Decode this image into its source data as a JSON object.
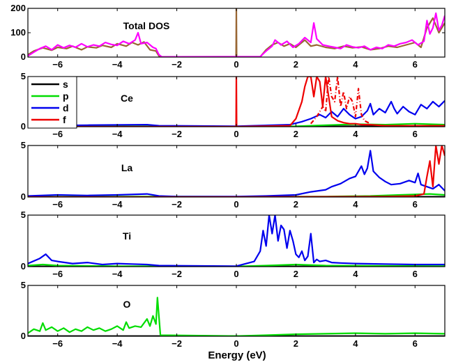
{
  "chart_data": {
    "type": "line",
    "xlabel": "Energy (eV)",
    "xlim": [
      -7,
      7
    ],
    "xticks": [
      -6,
      -4,
      -2,
      0,
      2,
      4,
      6
    ],
    "xtick_labels": [
      "−6",
      "−4",
      "−2",
      "0",
      "2",
      "4",
      "6"
    ],
    "legend": {
      "placement": "top-left of Ce panel",
      "entries": [
        {
          "label": "s",
          "color": "#000000"
        },
        {
          "label": "p",
          "color": "#00dd00"
        },
        {
          "label": "d",
          "color": "#0000ee"
        },
        {
          "label": "f",
          "color": "#ee0000"
        }
      ]
    },
    "fermi_level": 0,
    "panels": [
      {
        "label": "Total DOS",
        "ylim": [
          0,
          200
        ],
        "yticks": [
          0,
          100,
          200
        ],
        "series": [
          {
            "color": "#996633",
            "x": [
              -7.0,
              -6.8,
              -6.5,
              -6.2,
              -6.0,
              -5.7,
              -5.5,
              -5.2,
              -5.0,
              -4.7,
              -4.5,
              -4.2,
              -4.0,
              -3.7,
              -3.5,
              -3.3,
              -3.1,
              -2.9,
              -2.7,
              -2.6,
              -2.5,
              -0.02,
              -0.01,
              0.0,
              0.01,
              0.02,
              0.8,
              1.0,
              1.2,
              1.4,
              1.6,
              1.8,
              2.0,
              2.3,
              2.5,
              2.7,
              3.0,
              3.3,
              3.6,
              3.9,
              4.2,
              4.5,
              4.8,
              5.1,
              5.4,
              5.7,
              6.0,
              6.2,
              6.4,
              6.6,
              6.8,
              7.0
            ],
            "y": [
              10,
              25,
              38,
              28,
              40,
              35,
              45,
              30,
              42,
              38,
              48,
              40,
              55,
              45,
              60,
              50,
              62,
              30,
              25,
              5,
              1,
              1,
              1,
              200,
              1,
              1,
              1,
              30,
              50,
              60,
              45,
              55,
              40,
              70,
              45,
              50,
              40,
              35,
              45,
              38,
              42,
              30,
              35,
              45,
              40,
              50,
              60,
              40,
              120,
              160,
              100,
              140
            ]
          },
          {
            "color": "#ff00ff",
            "x": [
              -7.0,
              -6.8,
              -6.6,
              -6.4,
              -6.2,
              -6.0,
              -5.8,
              -5.6,
              -5.4,
              -5.2,
              -5.0,
              -4.8,
              -4.6,
              -4.4,
              -4.2,
              -4.0,
              -3.8,
              -3.6,
              -3.4,
              -3.3,
              -3.2,
              -3.0,
              -2.8,
              -2.7,
              -2.6,
              -2.5,
              0.8,
              1.0,
              1.2,
              1.3,
              1.5,
              1.7,
              1.9,
              2.1,
              2.3,
              2.5,
              2.6,
              2.7,
              2.9,
              3.1,
              3.3,
              3.5,
              3.7,
              3.9,
              4.1,
              4.3,
              4.5,
              4.7,
              4.9,
              5.1,
              5.3,
              5.5,
              5.7,
              5.9,
              6.1,
              6.3,
              6.4,
              6.5,
              6.6,
              6.7,
              6.8,
              6.9,
              7.0
            ],
            "y": [
              5,
              20,
              35,
              45,
              30,
              50,
              38,
              48,
              40,
              55,
              42,
              50,
              45,
              60,
              52,
              48,
              65,
              55,
              70,
              100,
              55,
              60,
              40,
              35,
              10,
              1,
              2,
              25,
              45,
              70,
              50,
              65,
              40,
              55,
              80,
              60,
              140,
              75,
              50,
              45,
              40,
              35,
              50,
              42,
              38,
              45,
              30,
              40,
              35,
              50,
              45,
              55,
              60,
              70,
              50,
              65,
              150,
              95,
              120,
              180,
              110,
              130,
              170
            ]
          }
        ]
      },
      {
        "label": "Ce",
        "ylim": [
          0,
          5
        ],
        "yticks": [
          0,
          5
        ],
        "series": [
          {
            "label": "s",
            "color": "#000000",
            "x": [
              -7.0,
              -4.0,
              0.0,
              2.0,
              4.0,
              7.0
            ],
            "y": [
              0.02,
              0.02,
              0.02,
              0.03,
              0.05,
              0.08
            ]
          },
          {
            "label": "p",
            "color": "#00dd00",
            "x": [
              -7.0,
              -4.0,
              0.0,
              2.0,
              3.0,
              4.0,
              5.0,
              6.0,
              7.0
            ],
            "y": [
              0.03,
              0.05,
              0.02,
              0.05,
              0.15,
              0.25,
              0.2,
              0.3,
              0.2
            ]
          },
          {
            "label": "d",
            "color": "#0000ee",
            "x": [
              -7.0,
              -5.0,
              -3.0,
              -2.6,
              0.0,
              1.8,
              2.2,
              2.5,
              2.8,
              3.0,
              3.2,
              3.4,
              3.6,
              3.8,
              4.0,
              4.2,
              4.4,
              4.5,
              4.6,
              4.8,
              5.0,
              5.2,
              5.3,
              5.4,
              5.6,
              5.8,
              6.0,
              6.2,
              6.4,
              6.6,
              6.8,
              7.0
            ],
            "y": [
              0.1,
              0.15,
              0.2,
              0.1,
              0.05,
              0.2,
              0.5,
              0.8,
              1.2,
              0.9,
              1.5,
              1.0,
              1.8,
              1.2,
              0.8,
              1.0,
              1.6,
              2.3,
              1.2,
              1.8,
              1.4,
              2.5,
              1.8,
              1.3,
              2.0,
              1.5,
              1.2,
              2.2,
              1.8,
              2.5,
              2.0,
              2.6
            ]
          },
          {
            "label": "f",
            "color": "#ee0000",
            "x": [
              -7.0,
              -0.02,
              -0.01,
              0.0,
              0.01,
              0.02,
              1.8,
              2.0,
              2.2,
              2.3,
              2.4,
              2.5,
              2.6,
              2.7,
              2.8,
              2.9,
              3.0,
              3.2,
              3.4,
              3.6,
              3.8,
              4.0,
              4.2,
              4.5,
              5.0,
              6.0,
              7.0
            ],
            "y": [
              0.0,
              0.0,
              0.0,
              5.0,
              0.0,
              0.0,
              0.1,
              0.8,
              2.5,
              4.0,
              5.0,
              5.0,
              3.0,
              5.0,
              4.5,
              2.0,
              5.0,
              1.0,
              0.6,
              0.4,
              0.3,
              0.3,
              0.2,
              0.2,
              0.1,
              0.1,
              0.1
            ]
          },
          {
            "label": "f (dash-dot)",
            "color": "#ee0000",
            "dash": "6,3,1,3",
            "x": [
              2.5,
              2.7,
              2.9,
              3.0,
              3.1,
              3.2,
              3.3,
              3.4,
              3.5,
              3.6,
              3.7,
              3.8,
              3.9,
              4.0,
              4.1,
              4.2,
              4.3,
              4.5
            ],
            "y": [
              0.3,
              1.0,
              2.0,
              1.5,
              5.0,
              3.0,
              2.5,
              5.0,
              2.0,
              3.5,
              1.8,
              3.0,
              2.5,
              1.0,
              3.8,
              1.2,
              0.6,
              0.3
            ]
          }
        ]
      },
      {
        "label": "La",
        "ylim": [
          0,
          5
        ],
        "yticks": [
          0,
          5
        ],
        "series": [
          {
            "label": "s",
            "color": "#000000",
            "x": [
              -7.0,
              0.0,
              7.0
            ],
            "y": [
              0.02,
              0.02,
              0.03
            ]
          },
          {
            "label": "p",
            "color": "#00dd00",
            "x": [
              -7.0,
              -3.0,
              0.0,
              3.0,
              4.5,
              5.5,
              6.5,
              7.0
            ],
            "y": [
              0.02,
              0.05,
              0.03,
              0.05,
              0.1,
              0.2,
              0.3,
              0.2
            ]
          },
          {
            "label": "d",
            "color": "#0000ee",
            "x": [
              -7.0,
              -6.0,
              -5.0,
              -4.0,
              -3.0,
              -2.6,
              -2.0,
              0.0,
              1.0,
              2.0,
              2.5,
              3.0,
              3.2,
              3.5,
              3.8,
              4.0,
              4.2,
              4.3,
              4.4,
              4.5,
              4.6,
              4.8,
              5.0,
              5.2,
              5.5,
              5.8,
              6.0,
              6.1,
              6.2,
              6.4,
              6.6,
              6.8,
              7.0
            ],
            "y": [
              0.1,
              0.2,
              0.15,
              0.2,
              0.3,
              0.1,
              0.05,
              0.05,
              0.1,
              0.2,
              0.5,
              0.7,
              1.0,
              1.3,
              1.8,
              2.0,
              3.0,
              2.2,
              2.8,
              4.5,
              2.5,
              1.9,
              1.5,
              1.2,
              1.3,
              1.6,
              1.4,
              2.3,
              1.2,
              1.0,
              0.8,
              1.2,
              0.6
            ]
          },
          {
            "label": "f",
            "color": "#ee0000",
            "x": [
              -7.0,
              0.0,
              5.0,
              6.0,
              6.3,
              6.4,
              6.5,
              6.6,
              6.7,
              6.8,
              6.9,
              7.0
            ],
            "y": [
              0.0,
              0.0,
              0.05,
              0.1,
              0.3,
              2.0,
              3.5,
              1.0,
              5.0,
              3.2,
              5.0,
              4.0
            ]
          }
        ]
      },
      {
        "label": "Ti",
        "ylim": [
          0,
          5
        ],
        "yticks": [
          0,
          5
        ],
        "series": [
          {
            "label": "s",
            "color": "#000000",
            "x": [
              -7.0,
              0.0,
              7.0
            ],
            "y": [
              0.02,
              0.02,
              0.02
            ]
          },
          {
            "label": "p",
            "color": "#00dd00",
            "x": [
              -7.0,
              -6.5,
              -6.0,
              -4.0,
              0.0,
              1.0,
              2.0,
              3.0,
              7.0
            ],
            "y": [
              0.1,
              0.2,
              0.1,
              0.05,
              0.02,
              0.1,
              0.2,
              0.1,
              0.05
            ]
          },
          {
            "label": "d",
            "color": "#0000ee",
            "x": [
              -7.0,
              -6.6,
              -6.4,
              -6.2,
              -6.0,
              -5.5,
              -5.0,
              -4.5,
              -4.0,
              -3.5,
              -3.0,
              -2.6,
              0.0,
              0.6,
              0.8,
              0.9,
              1.0,
              1.1,
              1.2,
              1.3,
              1.4,
              1.5,
              1.6,
              1.7,
              1.8,
              1.9,
              2.0,
              2.1,
              2.2,
              2.3,
              2.4,
              2.5,
              2.6,
              2.7,
              2.8,
              3.0,
              3.2,
              3.5,
              4.0,
              5.0,
              6.0,
              7.0
            ],
            "y": [
              0.3,
              0.8,
              1.2,
              0.6,
              0.5,
              0.3,
              0.4,
              0.2,
              0.3,
              0.25,
              0.2,
              0.1,
              0.05,
              0.5,
              1.5,
              3.5,
              2.0,
              5.0,
              3.2,
              5.0,
              2.5,
              4.0,
              3.6,
              1.8,
              3.5,
              2.5,
              1.2,
              0.9,
              1.5,
              0.6,
              1.0,
              3.2,
              0.4,
              0.7,
              0.5,
              0.6,
              0.4,
              0.35,
              0.3,
              0.25,
              0.2,
              0.2
            ]
          }
        ]
      },
      {
        "label": "O",
        "ylim": [
          0,
          5
        ],
        "yticks": [
          0,
          5
        ],
        "series": [
          {
            "label": "s",
            "color": "#000000",
            "x": [
              -7.0,
              0.0,
              7.0
            ],
            "y": [
              0.02,
              0.02,
              0.02
            ]
          },
          {
            "label": "p",
            "color": "#00dd00",
            "x": [
              -7.0,
              -6.8,
              -6.6,
              -6.5,
              -6.4,
              -6.2,
              -6.0,
              -5.8,
              -5.6,
              -5.4,
              -5.2,
              -5.0,
              -4.8,
              -4.6,
              -4.4,
              -4.2,
              -4.0,
              -3.8,
              -3.7,
              -3.6,
              -3.4,
              -3.2,
              -3.0,
              -2.9,
              -2.8,
              -2.7,
              -2.65,
              -2.6,
              -2.55,
              0.0,
              1.0,
              2.0,
              3.0,
              4.0,
              5.0,
              6.0,
              7.0
            ],
            "y": [
              0.3,
              0.7,
              0.5,
              1.3,
              0.6,
              0.9,
              0.5,
              0.8,
              0.4,
              0.7,
              0.5,
              0.9,
              0.6,
              0.8,
              0.5,
              0.7,
              1.0,
              0.6,
              1.4,
              0.8,
              1.0,
              0.9,
              1.7,
              1.0,
              2.0,
              1.2,
              3.8,
              2.0,
              0.1,
              0.02,
              0.1,
              0.2,
              0.25,
              0.3,
              0.25,
              0.3,
              0.25
            ]
          }
        ]
      }
    ]
  }
}
